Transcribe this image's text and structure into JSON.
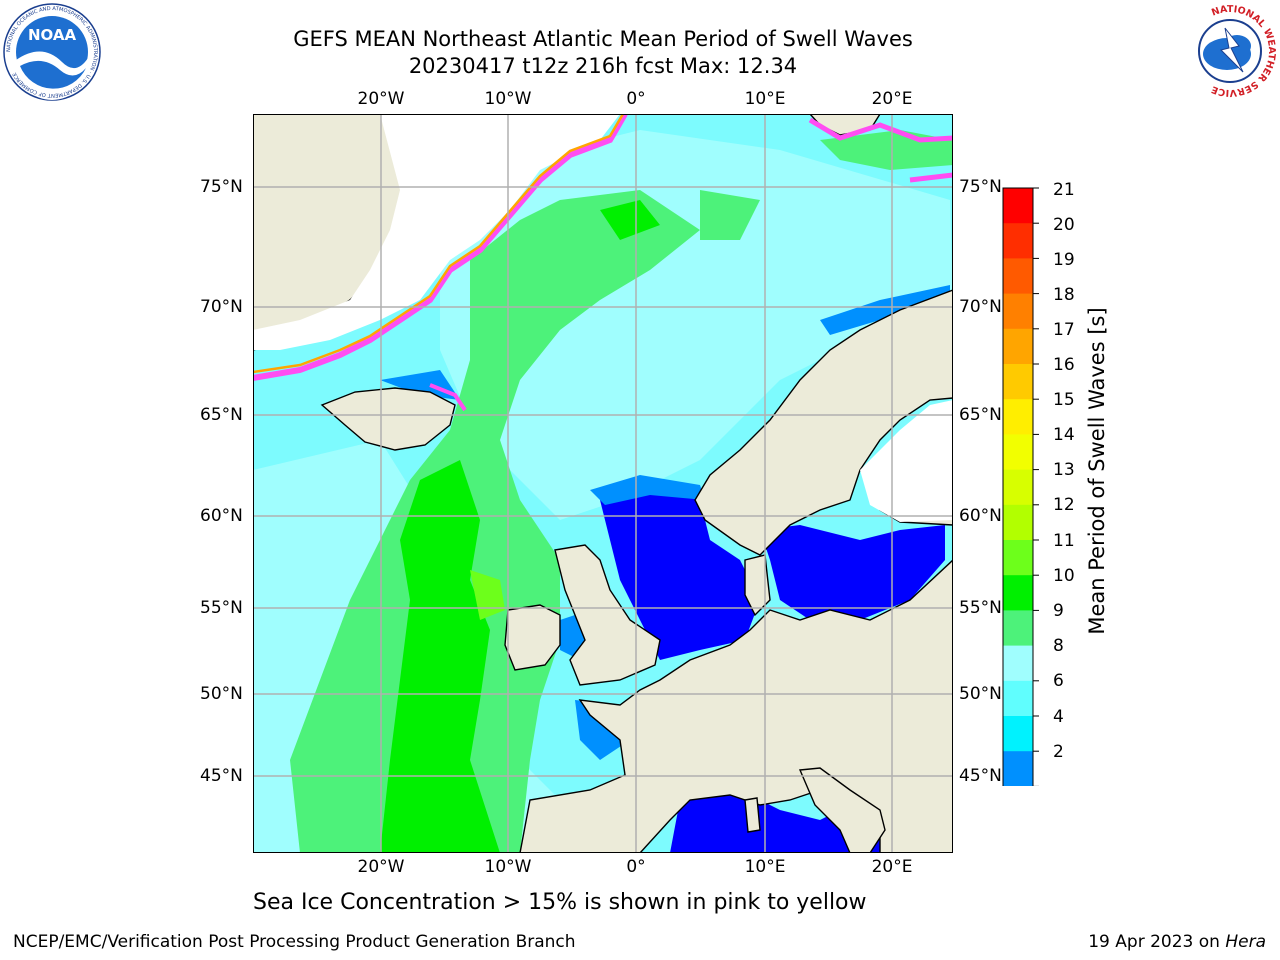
{
  "header": {
    "title_line1": "GEFS MEAN Northeast Atlantic Mean Period of Swell Waves",
    "title_line2": "20230417 t12z 216h fcst   Max: 12.34",
    "noaa_logo_text": "NOAA",
    "noaa_ring_text": "NATIONAL OCEANIC AND ATMOSPHERIC ADMINISTRATION · U.S. DEPARTMENT OF COMMERCE",
    "nws_ring_text": "NATIONAL WEATHER SERVICE"
  },
  "map": {
    "lon_labels_top": [
      "20°W",
      "10°W",
      "0°",
      "10°E",
      "20°E"
    ],
    "lon_labels_bottom": [
      "20°W",
      "10°W",
      "0°",
      "10°E",
      "20°E"
    ],
    "lat_labels_left": [
      "75°N",
      "70°N",
      "65°N",
      "60°N",
      "55°N",
      "50°N",
      "45°N"
    ],
    "lat_labels_right": [
      "75°N",
      "70°N",
      "65°N",
      "60°N",
      "55°N",
      "50°N",
      "45°N"
    ],
    "colors": {
      "land": "#ecebd9",
      "ocean_base": "#7dfbfe",
      "grid": "#b0b0b0"
    }
  },
  "colorbar": {
    "title": "Mean Period of Swell Waves [s]",
    "ticks": [
      "21",
      "20",
      "19",
      "18",
      "17",
      "16",
      "15",
      "14",
      "13",
      "12",
      "11",
      "10",
      "9",
      "8",
      "6",
      "4",
      "2"
    ],
    "colors_top_to_bottom": [
      "#ff0000",
      "#ff2e00",
      "#ff5a00",
      "#ff8000",
      "#ffa500",
      "#ffca00",
      "#ffee00",
      "#f2ff00",
      "#d7ff00",
      "#b2ff00",
      "#6dff1b",
      "#00f000",
      "#4df27a",
      "#a0fefe",
      "#60fefe",
      "#00f2fe",
      "#0090fe",
      "#0022ff"
    ],
    "extend_color": "#0000ff"
  },
  "note": "Sea Ice Concentration > 15% is shown in pink to yellow",
  "footer": {
    "left": "NCEP/EMC/Verification Post Processing Product Generation Branch",
    "right_date": "19 Apr 2023 on ",
    "right_host": "Hera"
  }
}
